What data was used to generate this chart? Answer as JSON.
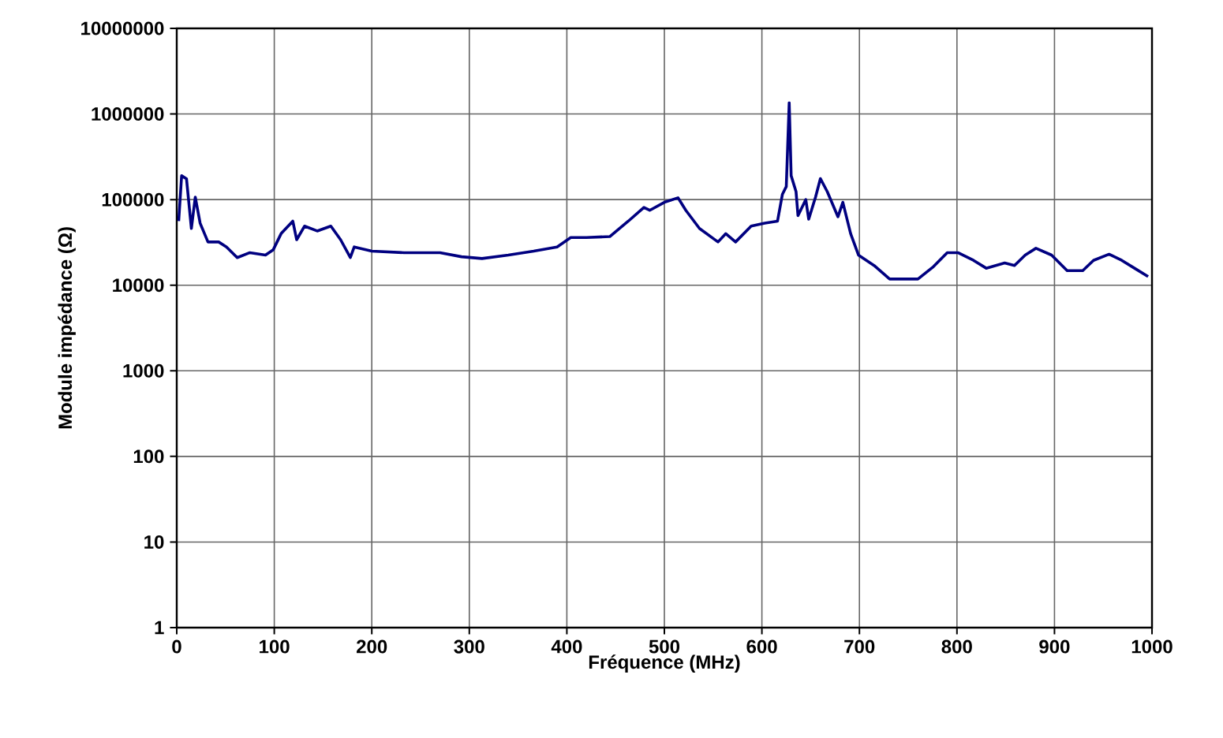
{
  "chart_data": {
    "type": "line",
    "xlabel": "Fréquence (MHz)",
    "ylabel": "Module impédance (Ω)",
    "log": "y",
    "grid": true,
    "xlim": [
      0,
      1000
    ],
    "xticks": [
      0,
      100,
      200,
      300,
      400,
      500,
      600,
      700,
      800,
      900,
      1000
    ],
    "ylim": [
      1,
      10000000
    ],
    "yticks": [
      1,
      10,
      100,
      1000,
      10000,
      100000,
      1000000,
      10000000
    ],
    "series": [
      {
        "color": "#000080",
        "x": [
          2,
          5,
          10,
          15,
          19,
          24,
          32,
          43,
          51,
          62,
          75,
          91,
          99,
          107,
          119,
          123,
          131,
          144,
          158,
          168,
          178,
          182,
          200,
          233,
          270,
          292,
          313,
          340,
          366,
          390,
          404,
          420,
          444,
          463,
          479,
          485,
          500,
          514,
          522,
          536,
          555,
          563,
          573,
          589,
          603,
          616,
          621,
          625,
          628,
          630,
          635,
          637,
          645,
          648,
          655,
          660,
          667,
          678,
          683,
          691,
          699,
          715,
          731,
          747,
          760,
          776,
          790,
          801,
          817,
          830,
          849,
          859,
          870,
          881,
          897,
          913,
          929,
          940,
          956,
          969,
          982,
          996
        ],
        "values": [
          56000,
          190000,
          175000,
          46000,
          107000,
          53000,
          32000,
          32000,
          28000,
          21000,
          24000,
          22500,
          26000,
          40000,
          56000,
          34000,
          49000,
          43000,
          49000,
          34000,
          21000,
          28000,
          25000,
          24000,
          24000,
          21500,
          20500,
          22500,
          25000,
          28000,
          36000,
          36000,
          37000,
          56000,
          81000,
          75000,
          93000,
          105000,
          75000,
          46000,
          32000,
          40000,
          32000,
          49000,
          53000,
          56000,
          115000,
          142000,
          1350000,
          190000,
          124000,
          65000,
          100000,
          59000,
          107000,
          176000,
          124000,
          63000,
          93000,
          40000,
          22500,
          17000,
          11800,
          11800,
          11800,
          16500,
          24000,
          24000,
          19500,
          15800,
          18200,
          17000,
          22500,
          27000,
          22500,
          14800,
          14800,
          19500,
          23000,
          19500,
          15800,
          12600
        ]
      }
    ]
  }
}
